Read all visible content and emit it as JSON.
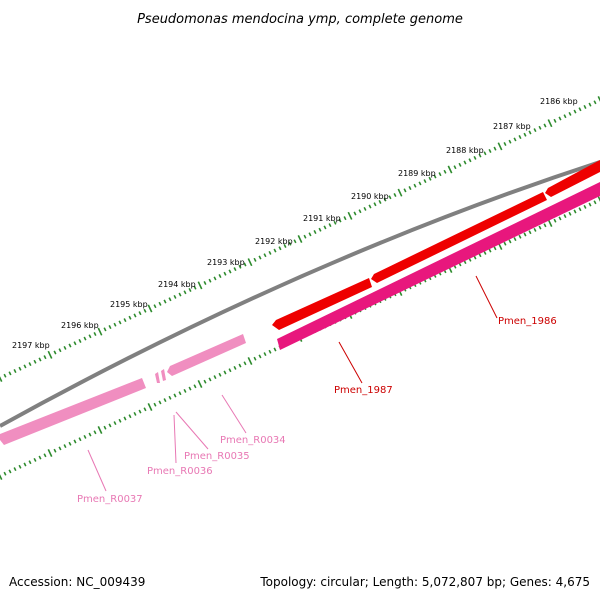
{
  "title": "Pseudomonas mendocina ymp, complete genome",
  "footer": {
    "accession": "Accession: NC_009439",
    "summary": "Topology: circular; Length: 5,072,807 bp; Genes: 4,675"
  },
  "colors": {
    "backbone": "#808080",
    "ticks": "#2e8b2e",
    "cds_forward": "#ee0000",
    "cds_reverse": "#e8177d",
    "rna": "#f08ec0",
    "label_cds_forward": "#cc0000",
    "label_cds_reverse": "#cc0000",
    "label_rna": "#e878b4"
  },
  "tick_labels": [
    "2186 kbp",
    "2187 kbp",
    "2188 kbp",
    "2189 kbp",
    "2190 kbp",
    "2191 kbp",
    "2192 kbp",
    "2193 kbp",
    "2194 kbp",
    "2195 kbp",
    "2196 kbp",
    "2197 kbp"
  ],
  "genes": [
    {
      "label": "Pmen_1986",
      "type": "cds_forward"
    },
    {
      "label": "Pmen_1987",
      "type": "cds_reverse"
    },
    {
      "label": "Pmen_R0034",
      "type": "rna"
    },
    {
      "label": "Pmen_R0035",
      "type": "rna"
    },
    {
      "label": "Pmen_R0036",
      "type": "rna"
    },
    {
      "label": "Pmen_R0037",
      "type": "rna"
    }
  ]
}
